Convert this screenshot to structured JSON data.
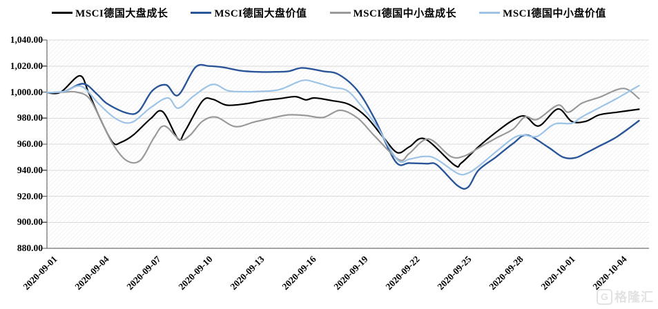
{
  "legend": [
    {
      "label": "MSCI德国大盘成长",
      "color": "#000000"
    },
    {
      "label": "MSCI德国大盘价值",
      "color": "#2A5699"
    },
    {
      "label": "MSCI德国中小盘成长",
      "color": "#999999"
    },
    {
      "label": "MSCI德国中小盘价值",
      "color": "#9DC3E6"
    }
  ],
  "watermark": {
    "logo": "G",
    "text": "格隆汇"
  },
  "colors": {
    "gridline": "#D9D9D9",
    "axis": "#4d4d4d",
    "hatch": "rgba(120,120,120,0.10)"
  },
  "chart_data": {
    "type": "line",
    "title": "",
    "xlabel": "",
    "ylabel": "",
    "grid": "horizontal",
    "legend_position": "top",
    "y_axis": {
      "min": 880,
      "max": 1040,
      "step": 20,
      "tick_labels": [
        "1,040.00",
        "1,020.00",
        "1,000.00",
        "980.00",
        "960.00",
        "940.00",
        "920.00",
        "900.00",
        "880.00"
      ]
    },
    "x_axis": {
      "days_per_tick": 3,
      "tick_labels": [
        "2020-09-01",
        "2020-09-04",
        "2020-09-07",
        "2020-09-10",
        "2020-09-13",
        "2020-09-16",
        "2020-09-19",
        "2020-09-22",
        "2020-09-25",
        "2020-09-28",
        "2020-10-01",
        "2020-10-04"
      ]
    },
    "series": [
      {
        "name": "MSCI德国大盘成长",
        "color": "#000000",
        "width": 2.2,
        "points": [
          [
            0,
            999.5
          ],
          [
            0.8,
            1000
          ],
          [
            1.9,
            1012.5
          ],
          [
            2.4,
            1000
          ],
          [
            3,
            982
          ],
          [
            3.8,
            961.5
          ],
          [
            4.3,
            961.5
          ],
          [
            5,
            967
          ],
          [
            6,
            979.5
          ],
          [
            6.7,
            985
          ],
          [
            7.6,
            964
          ],
          [
            8,
            970
          ],
          [
            9,
            993
          ],
          [
            9.6,
            994.5
          ],
          [
            10.4,
            990
          ],
          [
            11.5,
            991
          ],
          [
            12.5,
            993.5
          ],
          [
            13.5,
            995
          ],
          [
            14.4,
            996.5
          ],
          [
            15,
            994
          ],
          [
            15.5,
            995.5
          ],
          [
            16.5,
            993.5
          ],
          [
            17.5,
            990.5
          ],
          [
            18.5,
            981
          ],
          [
            19.5,
            965
          ],
          [
            20.3,
            953.5
          ],
          [
            21,
            958
          ],
          [
            21.9,
            964
          ],
          [
            23.6,
            944
          ],
          [
            24,
            945.5
          ],
          [
            25,
            958
          ],
          [
            26,
            969
          ],
          [
            27,
            978.5
          ],
          [
            27.7,
            981.5
          ],
          [
            28.5,
            974
          ],
          [
            29.6,
            987
          ],
          [
            30.4,
            977.5
          ],
          [
            31.2,
            977.5
          ],
          [
            32,
            982.5
          ],
          [
            33,
            984.5
          ],
          [
            34.3,
            986.8
          ]
        ]
      },
      {
        "name": "MSCI德国大盘价值",
        "color": "#2A5699",
        "width": 2.4,
        "points": [
          [
            0,
            999.5
          ],
          [
            1,
            1000.5
          ],
          [
            2.1,
            1006.4
          ],
          [
            2.9,
            998.4
          ],
          [
            3.5,
            991
          ],
          [
            4.6,
            984
          ],
          [
            5.3,
            985
          ],
          [
            6.1,
            1001
          ],
          [
            6.9,
            1005.5
          ],
          [
            7.6,
            997.6
          ],
          [
            8.6,
            1019
          ],
          [
            9.4,
            1020
          ],
          [
            10.2,
            1019
          ],
          [
            11.2,
            1016.5
          ],
          [
            12.2,
            1015.5
          ],
          [
            13.2,
            1015.5
          ],
          [
            14,
            1016
          ],
          [
            14.8,
            1018.6
          ],
          [
            16,
            1016
          ],
          [
            16.9,
            1013.5
          ],
          [
            18,
            1001
          ],
          [
            19,
            979
          ],
          [
            20.2,
            946.5
          ],
          [
            21,
            945.5
          ],
          [
            22,
            945
          ],
          [
            22.6,
            944
          ],
          [
            23.8,
            928
          ],
          [
            24.4,
            927
          ],
          [
            25,
            940
          ],
          [
            26,
            950
          ],
          [
            27,
            960.5
          ],
          [
            27.8,
            967
          ],
          [
            29,
            958
          ],
          [
            29.9,
            950
          ],
          [
            30.6,
            949.5
          ],
          [
            31.2,
            953
          ],
          [
            32,
            958.5
          ],
          [
            33,
            965.5
          ],
          [
            34.3,
            978
          ]
        ]
      },
      {
        "name": "MSCI德国中小盘成长",
        "color": "#999999",
        "width": 2.2,
        "points": [
          [
            0,
            999.5
          ],
          [
            1,
            1000
          ],
          [
            1.7,
            1000
          ],
          [
            2.4,
            996
          ],
          [
            3,
            982
          ],
          [
            3.8,
            960.5
          ],
          [
            4.6,
            947.5
          ],
          [
            5.4,
            947.5
          ],
          [
            6.2,
            965
          ],
          [
            6.8,
            974
          ],
          [
            7.7,
            963.5
          ],
          [
            8.3,
            967
          ],
          [
            9,
            977.5
          ],
          [
            9.8,
            980.8
          ],
          [
            10.9,
            973.5
          ],
          [
            12,
            977
          ],
          [
            13,
            980
          ],
          [
            14,
            982.5
          ],
          [
            15,
            982
          ],
          [
            16,
            980.5
          ],
          [
            17,
            986
          ],
          [
            18,
            980
          ],
          [
            19,
            966
          ],
          [
            20.4,
            948
          ],
          [
            21,
            953
          ],
          [
            22.1,
            964
          ],
          [
            23.4,
            950.5
          ],
          [
            24.2,
            951
          ],
          [
            25,
            957
          ],
          [
            26,
            964.5
          ],
          [
            27,
            971.5
          ],
          [
            27.7,
            981
          ],
          [
            28.4,
            979
          ],
          [
            29.6,
            990
          ],
          [
            30.2,
            984.5
          ],
          [
            31,
            991.5
          ],
          [
            32,
            996
          ],
          [
            33.4,
            1002.8
          ],
          [
            34.3,
            995
          ]
        ]
      },
      {
        "name": "MSCI德国中小盘价值",
        "color": "#9DC3E6",
        "width": 2.2,
        "points": [
          [
            0,
            999.5
          ],
          [
            1,
            1000.5
          ],
          [
            2,
            1004.4
          ],
          [
            3,
            991
          ],
          [
            4,
            979.5
          ],
          [
            4.9,
            976.7
          ],
          [
            6,
            988
          ],
          [
            7,
            995.5
          ],
          [
            7.6,
            987.6
          ],
          [
            8.5,
            997
          ],
          [
            9.6,
            1005.9
          ],
          [
            10.5,
            1001
          ],
          [
            11.5,
            1000.3
          ],
          [
            12.5,
            1000.6
          ],
          [
            13.5,
            1002
          ],
          [
            14.8,
            1008.9
          ],
          [
            15.6,
            1007.3
          ],
          [
            16.5,
            1003.8
          ],
          [
            17.4,
            1001
          ],
          [
            18.2,
            989.6
          ],
          [
            19.1,
            974
          ],
          [
            20.3,
            948
          ],
          [
            21,
            948.5
          ],
          [
            21.8,
            950.5
          ],
          [
            22.5,
            949
          ],
          [
            23.8,
            937.5
          ],
          [
            24.4,
            937.8
          ],
          [
            25,
            943
          ],
          [
            26,
            954
          ],
          [
            27,
            964.5
          ],
          [
            27.6,
            967
          ],
          [
            28.4,
            966
          ],
          [
            29.4,
            975.4
          ],
          [
            30.4,
            976
          ],
          [
            31,
            981
          ],
          [
            32,
            988
          ],
          [
            33,
            995
          ],
          [
            34.3,
            1005
          ]
        ]
      }
    ]
  }
}
